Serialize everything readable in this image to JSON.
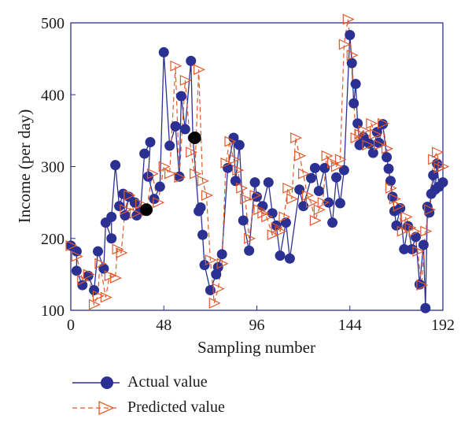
{
  "chart_data": {
    "type": "line",
    "xlabel": "Sampling number",
    "ylabel": "Income (per day)",
    "xlim": [
      0,
      192
    ],
    "ylim": [
      100,
      500
    ],
    "xticks": [
      0,
      48,
      96,
      144,
      192
    ],
    "yticks": [
      100,
      200,
      300,
      400,
      500
    ],
    "grid": false,
    "legend_position": "bottom-left, outside plot",
    "colors": {
      "actual": "#2b3192",
      "predicted": "#e05a2b"
    },
    "series": [
      {
        "name": "Actual value",
        "style": "solid line with filled circle markers",
        "points": [
          [
            0,
            190
          ],
          [
            3,
            182
          ],
          [
            3,
            155
          ],
          [
            6,
            135
          ],
          [
            9,
            148
          ],
          [
            12,
            128
          ],
          [
            14,
            182
          ],
          [
            17,
            158
          ],
          [
            18,
            222
          ],
          [
            21,
            200
          ],
          [
            21,
            230
          ],
          [
            23,
            302
          ],
          [
            25,
            245
          ],
          [
            27,
            262
          ],
          [
            28,
            232
          ],
          [
            30,
            258
          ],
          [
            33,
            250
          ],
          [
            34,
            232
          ],
          [
            36,
            238
          ],
          [
            38,
            318
          ],
          [
            41,
            334
          ],
          [
            40,
            286
          ],
          [
            43,
            255
          ],
          [
            46,
            272
          ],
          [
            48,
            459
          ],
          [
            51,
            329
          ],
          [
            54,
            356
          ],
          [
            56,
            286
          ],
          [
            57,
            398
          ],
          [
            59,
            352
          ],
          [
            62,
            447
          ],
          [
            63,
            340
          ],
          [
            66,
            238
          ],
          [
            67,
            243
          ],
          [
            68,
            205
          ],
          [
            69,
            163
          ],
          [
            72,
            128
          ],
          [
            75,
            150
          ],
          [
            76,
            160
          ],
          [
            78,
            178
          ],
          [
            81,
            298
          ],
          [
            84,
            340
          ],
          [
            85,
            280
          ],
          [
            87,
            330
          ],
          [
            89,
            225
          ],
          [
            92,
            183
          ],
          [
            95,
            278
          ],
          [
            96,
            258
          ],
          [
            99,
            245
          ],
          [
            102,
            278
          ],
          [
            104,
            235
          ],
          [
            106,
            218
          ],
          [
            108,
            176
          ],
          [
            111,
            222
          ],
          [
            113,
            172
          ],
          [
            118,
            268
          ],
          [
            120,
            245
          ],
          [
            124,
            284
          ],
          [
            126,
            298
          ],
          [
            128,
            266
          ],
          [
            131,
            298
          ],
          [
            133,
            250
          ],
          [
            135,
            222
          ],
          [
            137,
            285
          ],
          [
            139,
            249
          ],
          [
            141,
            295
          ],
          [
            144,
            483
          ],
          [
            145,
            444
          ],
          [
            146,
            388
          ],
          [
            147,
            415
          ],
          [
            148,
            360
          ],
          [
            149,
            330
          ],
          [
            151,
            341
          ],
          [
            154,
            332
          ],
          [
            156,
            319
          ],
          [
            158,
            348
          ],
          [
            159,
            333
          ],
          [
            161,
            359
          ],
          [
            163,
            313
          ],
          [
            164,
            297
          ],
          [
            165,
            280
          ],
          [
            166,
            258
          ],
          [
            167,
            238
          ],
          [
            168,
            218
          ],
          [
            170,
            242
          ],
          [
            172,
            185
          ],
          [
            174,
            217
          ],
          [
            176,
            185
          ],
          [
            178,
            202
          ],
          [
            180,
            136
          ],
          [
            182,
            191
          ],
          [
            183,
            103
          ],
          [
            184,
            244
          ],
          [
            185,
            236
          ],
          [
            186,
            262
          ],
          [
            187,
            288
          ],
          [
            188,
            268
          ],
          [
            189,
            304
          ],
          [
            190,
            272
          ],
          [
            192,
            278
          ]
        ]
      },
      {
        "name": "Predicted value",
        "style": "dashed line with open right-pointing triangle markers",
        "points": [
          [
            0,
            190
          ],
          [
            3,
            175
          ],
          [
            6,
            142
          ],
          [
            9,
            150
          ],
          [
            12,
            108
          ],
          [
            14,
            120
          ],
          [
            15,
            165
          ],
          [
            18,
            118
          ],
          [
            20,
            148
          ],
          [
            23,
            145
          ],
          [
            24,
            185
          ],
          [
            26,
            180
          ],
          [
            28,
            240
          ],
          [
            30,
            260
          ],
          [
            33,
            235
          ],
          [
            36,
            248
          ],
          [
            39,
            238
          ],
          [
            42,
            290
          ],
          [
            45,
            250
          ],
          [
            48,
            300
          ],
          [
            51,
            290
          ],
          [
            54,
            440
          ],
          [
            56,
            285
          ],
          [
            59,
            420
          ],
          [
            62,
            320
          ],
          [
            64,
            290
          ],
          [
            66,
            435
          ],
          [
            68,
            280
          ],
          [
            70,
            260
          ],
          [
            72,
            170
          ],
          [
            74,
            110
          ],
          [
            76,
            130
          ],
          [
            78,
            165
          ],
          [
            80,
            305
          ],
          [
            82,
            335
          ],
          [
            84,
            310
          ],
          [
            86,
            295
          ],
          [
            88,
            270
          ],
          [
            90,
            255
          ],
          [
            92,
            200
          ],
          [
            95,
            260
          ],
          [
            97,
            240
          ],
          [
            99,
            235
          ],
          [
            101,
            230
          ],
          [
            104,
            205
          ],
          [
            106,
            215
          ],
          [
            108,
            210
          ],
          [
            110,
            230
          ],
          [
            112,
            270
          ],
          [
            114,
            255
          ],
          [
            116,
            340
          ],
          [
            118,
            315
          ],
          [
            120,
            290
          ],
          [
            122,
            260
          ],
          [
            124,
            250
          ],
          [
            126,
            225
          ],
          [
            128,
            240
          ],
          [
            130,
            250
          ],
          [
            132,
            315
          ],
          [
            135,
            305
          ],
          [
            137,
            300
          ],
          [
            139,
            310
          ],
          [
            141,
            470
          ],
          [
            143,
            505
          ],
          [
            145,
            455
          ],
          [
            147,
            340
          ],
          [
            149,
            345
          ],
          [
            151,
            350
          ],
          [
            153,
            330
          ],
          [
            155,
            360
          ],
          [
            157,
            345
          ],
          [
            159,
            330
          ],
          [
            161,
            360
          ],
          [
            163,
            325
          ],
          [
            165,
            270
          ],
          [
            167,
            255
          ],
          [
            169,
            245
          ],
          [
            171,
            210
          ],
          [
            173,
            230
          ],
          [
            175,
            215
          ],
          [
            177,
            210
          ],
          [
            179,
            182
          ],
          [
            181,
            135
          ],
          [
            183,
            210
          ],
          [
            185,
            240
          ],
          [
            187,
            310
          ],
          [
            189,
            320
          ],
          [
            190,
            298
          ],
          [
            192,
            300
          ]
        ]
      }
    ],
    "highlighted_points": [
      [
        39,
        240
      ],
      [
        64,
        340
      ]
    ]
  },
  "legend": {
    "actual_label": "Actual value",
    "predicted_label": "Predicted value"
  }
}
